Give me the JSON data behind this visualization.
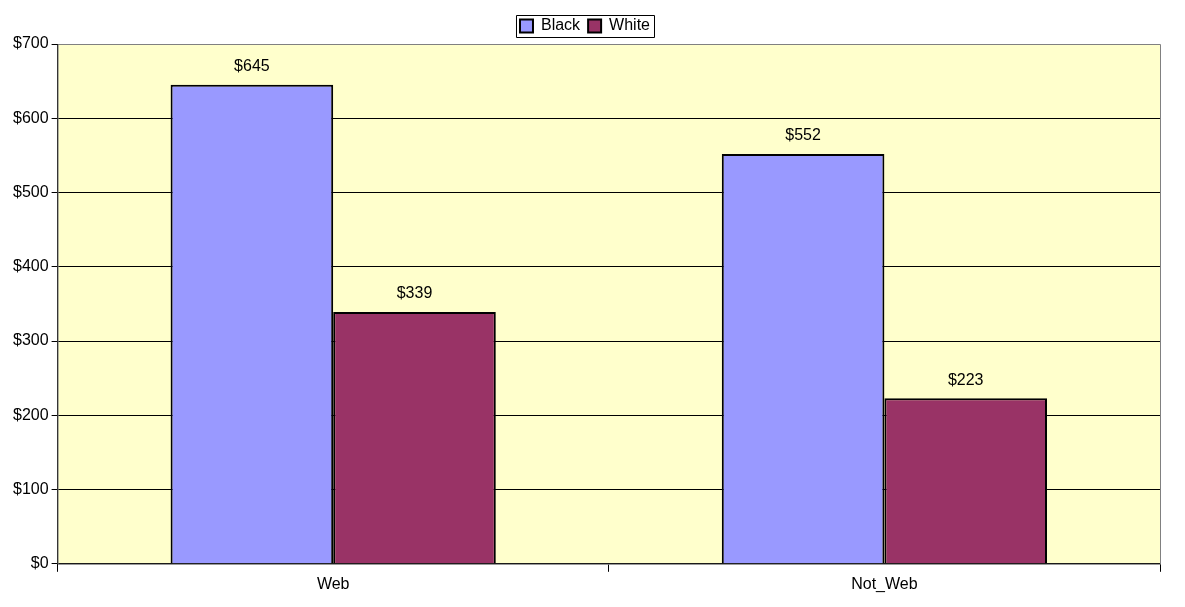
{
  "chart_data": {
    "type": "bar",
    "categories": [
      "Web",
      "Not_Web"
    ],
    "series": [
      {
        "name": "Black",
        "color": "#9999ff",
        "values": [
          645,
          552
        ],
        "value_labels": [
          "$645",
          "$552"
        ]
      },
      {
        "name": "White",
        "color": "#993366",
        "values": [
          339,
          223
        ],
        "value_labels": [
          "$339",
          "$223"
        ]
      }
    ],
    "ylim": [
      0,
      700
    ],
    "yticks": [
      {
        "value": 0,
        "label": "$0"
      },
      {
        "value": 100,
        "label": "$100"
      },
      {
        "value": 200,
        "label": "$200"
      },
      {
        "value": 300,
        "label": "$300"
      },
      {
        "value": 400,
        "label": "$400"
      },
      {
        "value": 500,
        "label": "$500"
      },
      {
        "value": 600,
        "label": "$600"
      },
      {
        "value": 700,
        "label": "$700"
      }
    ],
    "grid": "y",
    "legend": "top"
  }
}
